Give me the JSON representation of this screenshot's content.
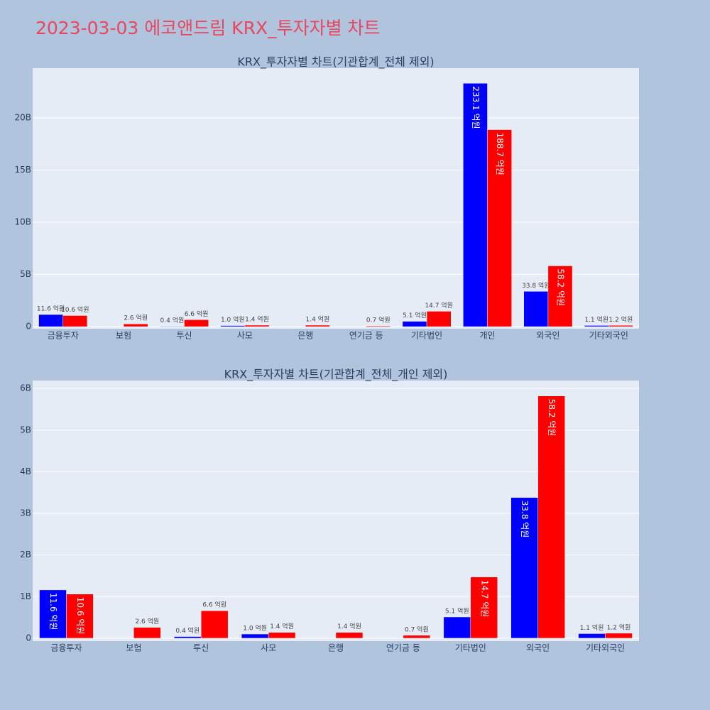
{
  "title": "2023-03-03 에코앤드림 KRX_투자자별 차트",
  "chart_data": [
    {
      "type": "bar",
      "title": "KRX_투자자별 차트(기관합계_전체 제외)",
      "categories": [
        "금융투자",
        "보험",
        "투신",
        "사모",
        "은행",
        "연기금 등",
        "기타법인",
        "개인",
        "외국인",
        "기타외국인"
      ],
      "series": [
        {
          "color": "#0000ff",
          "values": [
            1.16,
            null,
            0.04,
            0.1,
            null,
            null,
            0.51,
            23.31,
            3.38,
            0.11
          ],
          "value_labels": [
            "11.6 억원",
            null,
            "0.4 억원",
            "1.0 억원",
            null,
            null,
            "5.1 억원",
            "233.1 억원",
            "33.8 억원",
            "1.1 억원"
          ]
        },
        {
          "color": "#ff0000",
          "values": [
            1.06,
            0.26,
            0.66,
            0.14,
            0.14,
            0.07,
            1.47,
            18.87,
            5.82,
            0.12
          ],
          "value_labels": [
            "10.6 억원",
            "2.6 억원",
            "6.6 억원",
            "1.4 억원",
            "1.4 억원",
            "0.7 억원",
            "14.7 억원",
            "188.7 억원",
            "58.2 억원",
            "1.2 억원"
          ]
        }
      ],
      "ylim": [
        -0.2,
        24.76
      ],
      "yticks": [
        0,
        {
          "value": 5,
          "label": "5B"
        },
        {
          "value": 10,
          "label": "10B"
        },
        {
          "value": 15,
          "label": "15B"
        },
        {
          "value": 20,
          "label": "20B"
        }
      ],
      "grid": true
    },
    {
      "type": "bar",
      "title": "KRX_투자자별 차트(기관합계_전체_개인 제외)",
      "categories": [
        "금융투자",
        "보험",
        "투신",
        "사모",
        "은행",
        "연기금 등",
        "기타법인",
        "외국인",
        "기타외국인"
      ],
      "series": [
        {
          "color": "#0000ff",
          "values": [
            1.16,
            null,
            0.04,
            0.1,
            null,
            null,
            0.51,
            3.38,
            0.11
          ],
          "value_labels": [
            "11.6 억원",
            null,
            "0.4 억원",
            "1.0 억원",
            null,
            null,
            "5.1 억원",
            "33.8 억원",
            "1.1 억원"
          ]
        },
        {
          "color": "#ff0000",
          "values": [
            1.06,
            0.26,
            0.66,
            0.14,
            0.14,
            0.07,
            1.47,
            5.82,
            0.12
          ],
          "value_labels": [
            "10.6 억원",
            "2.6 억원",
            "6.6 억원",
            "1.4 억원",
            "1.4 억원",
            "0.7 억원",
            "14.7 억원",
            "58.2 억원",
            "1.2 억원"
          ]
        }
      ],
      "ylim": [
        -0.07,
        6.19
      ],
      "yticks": [
        0,
        {
          "value": 1,
          "label": "1B"
        },
        {
          "value": 2,
          "label": "2B"
        },
        {
          "value": 3,
          "label": "3B"
        },
        {
          "value": 4,
          "label": "4B"
        },
        {
          "value": 5,
          "label": "5B"
        },
        {
          "value": 6,
          "label": "6B"
        }
      ],
      "grid": true
    }
  ]
}
